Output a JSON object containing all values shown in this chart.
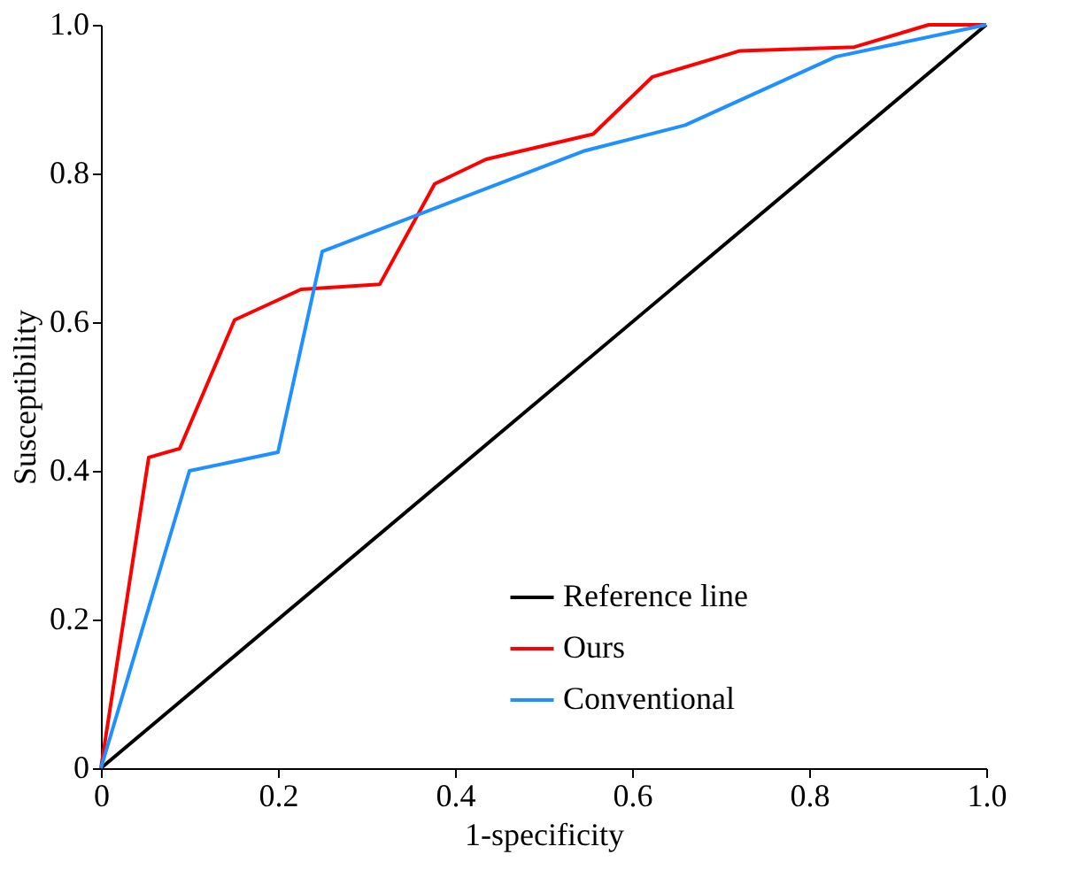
{
  "chart_data": {
    "type": "line",
    "xlabel": "1-specificity",
    "ylabel": "Susceptibility",
    "xlim": [
      0,
      1
    ],
    "ylim": [
      0,
      1
    ],
    "xticks": [
      0,
      0.2,
      0.4,
      0.6,
      0.8,
      {
        "value": 1,
        "label": "1.0"
      }
    ],
    "yticks": [
      0,
      0.2,
      0.4,
      0.6,
      0.8,
      {
        "value": 1,
        "label": "1.0"
      }
    ],
    "grid": false,
    "legend": "bottom right",
    "marker": "none",
    "line_style": "solid",
    "series": [
      {
        "name": "Reference line",
        "color": "#000000",
        "x": [
          0,
          1
        ],
        "values": [
          0,
          1
        ]
      },
      {
        "name": "Ours",
        "color": "#ff0000",
        "x": [
          0,
          0.054,
          0.089,
          0.151,
          0.226,
          0.315,
          0.377,
          0.435,
          0.556,
          0.623,
          0.722,
          0.851,
          0.935,
          1
        ],
        "values": [
          0,
          0.418,
          0.43,
          0.603,
          0.644,
          0.651,
          0.786,
          0.819,
          0.853,
          0.93,
          0.965,
          0.97,
          1,
          1
        ]
      },
      {
        "name": "Conventional",
        "color": "#1e90ff",
        "x": [
          0,
          0.1,
          0.2,
          0.25,
          0.545,
          0.66,
          0.83,
          1
        ],
        "values": [
          0,
          0.4,
          0.425,
          0.695,
          0.83,
          0.865,
          0.957,
          1
        ]
      }
    ]
  }
}
